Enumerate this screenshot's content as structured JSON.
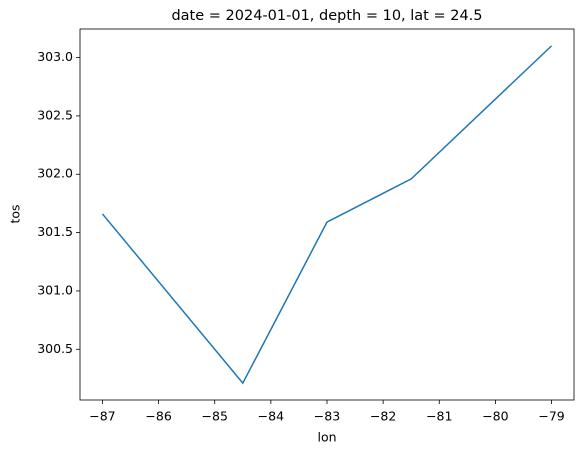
{
  "chart_data": {
    "type": "line",
    "title": "date = 2024-01-01, depth = 10, lat = 24.5",
    "xlabel": "lon",
    "ylabel": "tos",
    "x": [
      -87,
      -84.5,
      -83,
      -81.5,
      -79
    ],
    "series": [
      {
        "color": "#1f77b4",
        "values": [
          301.66,
          300.21,
          301.59,
          301.96,
          303.1
        ]
      }
    ],
    "xlim": [
      -87.4,
      -78.6
    ],
    "ylim": [
      300.0655,
      303.2445
    ],
    "xticks": [
      {
        "value": -87,
        "label": "−87"
      },
      {
        "value": -86,
        "label": "−86"
      },
      {
        "value": -85,
        "label": "−85"
      },
      {
        "value": -84,
        "label": "−84"
      },
      {
        "value": -83,
        "label": "−83"
      },
      {
        "value": -82,
        "label": "−82"
      },
      {
        "value": -81,
        "label": "−81"
      },
      {
        "value": -80,
        "label": "−80"
      },
      {
        "value": -79,
        "label": "−79"
      }
    ],
    "yticks": [
      300.5,
      {
        "value": 301,
        "label": "301.0"
      },
      301.5,
      {
        "value": 302,
        "label": "302.0"
      },
      302.5,
      {
        "value": 303,
        "label": "303.0"
      }
    ]
  }
}
